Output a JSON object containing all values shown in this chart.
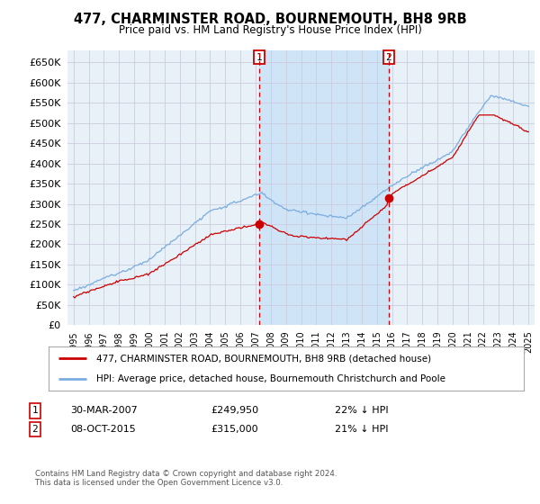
{
  "title": "477, CHARMINSTER ROAD, BOURNEMOUTH, BH8 9RB",
  "subtitle": "Price paid vs. HM Land Registry's House Price Index (HPI)",
  "legend_line1": "477, CHARMINSTER ROAD, BOURNEMOUTH, BH8 9RB (detached house)",
  "legend_line2": "HPI: Average price, detached house, Bournemouth Christchurch and Poole",
  "transaction1_date": "30-MAR-2007",
  "transaction1_price": "£249,950",
  "transaction1_hpi": "22% ↓ HPI",
  "transaction2_date": "08-OCT-2015",
  "transaction2_price": "£315,000",
  "transaction2_hpi": "21% ↓ HPI",
  "footnote": "Contains HM Land Registry data © Crown copyright and database right 2024.\nThis data is licensed under the Open Government Licence v3.0.",
  "hpi_color": "#7aade0",
  "price_color": "#cc0000",
  "marker_color": "#cc0000",
  "grid_color": "#ccccdd",
  "bg_color": "#e8f0f8",
  "shade_color": "#d0e4f7",
  "ylim": [
    0,
    680000
  ],
  "yticks": [
    0,
    50000,
    100000,
    150000,
    200000,
    250000,
    300000,
    350000,
    400000,
    450000,
    500000,
    550000,
    600000,
    650000
  ],
  "transaction1_x": 2007.25,
  "transaction2_x": 2015.77,
  "vline_color": "#cc0000"
}
